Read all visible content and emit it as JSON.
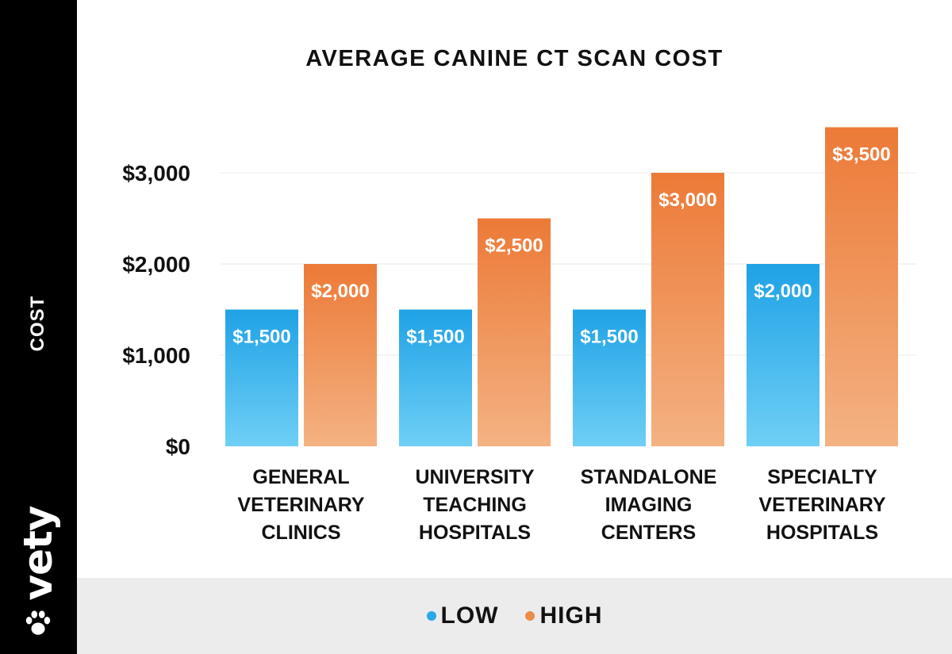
{
  "colors": {
    "low_top": "#1fa2e6",
    "low_bottom": "#6fcff5",
    "high_top": "#ec7a37",
    "high_bottom": "#f4b283",
    "low_legend": "#2aa8e8",
    "high_legend": "#ee8a4a"
  },
  "sidebar": {
    "axis_label": "COST",
    "brand": "vety",
    "brand_icon": "paw-icon"
  },
  "chart_data": {
    "type": "bar",
    "title": "AVERAGE CANINE CT SCAN COST",
    "xlabel": "",
    "ylabel": "COST",
    "ylim": [
      0,
      3500
    ],
    "y_ticks": [
      {
        "value": 0,
        "label": "$0"
      },
      {
        "value": 1000,
        "label": "$1,000"
      },
      {
        "value": 2000,
        "label": "$2,000"
      },
      {
        "value": 3000,
        "label": "$3,000"
      }
    ],
    "grid": true,
    "legend_position": "bottom",
    "categories": [
      [
        "GENERAL",
        "VETERINARY",
        "CLINICS"
      ],
      [
        "UNIVERSITY",
        "TEACHING",
        "HOSPITALS"
      ],
      [
        "STANDALONE",
        "IMAGING",
        "CENTERS"
      ],
      [
        "SPECIALTY",
        "VETERINARY",
        "HOSPITALS"
      ]
    ],
    "series": [
      {
        "name": "LOW",
        "values": [
          1500,
          1500,
          1500,
          2000
        ],
        "labels": [
          "$1,500",
          "$1,500",
          "$1,500",
          "$2,000"
        ]
      },
      {
        "name": "HIGH",
        "values": [
          2000,
          2500,
          3000,
          3500
        ],
        "labels": [
          "$2,000",
          "$2,500",
          "$3,000",
          "$3,500"
        ]
      }
    ]
  }
}
